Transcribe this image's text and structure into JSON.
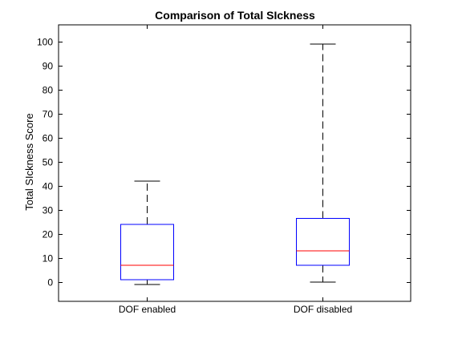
{
  "chart_data": {
    "type": "box",
    "title": "Comparison of Total SIckness",
    "xlabel": "",
    "ylabel": "Total SIckness Score",
    "ylim": [
      -8,
      107
    ],
    "yticks": [
      0,
      10,
      20,
      30,
      40,
      50,
      60,
      70,
      80,
      90,
      100
    ],
    "ytick_labels": [
      "0",
      "10",
      "20",
      "30",
      "40",
      "50",
      "60",
      "70",
      "80",
      "90",
      "100"
    ],
    "categories": [
      "DOF enabled",
      "DOF disabled"
    ],
    "boxes": [
      {
        "category": "DOF enabled",
        "whisker_low": -1,
        "q1": 1,
        "median": 7,
        "q3": 24,
        "whisker_high": 42
      },
      {
        "category": "DOF disabled",
        "whisker_low": 0,
        "q1": 7,
        "median": 13,
        "q3": 26.5,
        "whisker_high": 99
      }
    ],
    "grid": false,
    "colors": {
      "box": "#0000ff",
      "median": "#ff0000",
      "whisker": "#000000",
      "axes": "#000000"
    }
  }
}
